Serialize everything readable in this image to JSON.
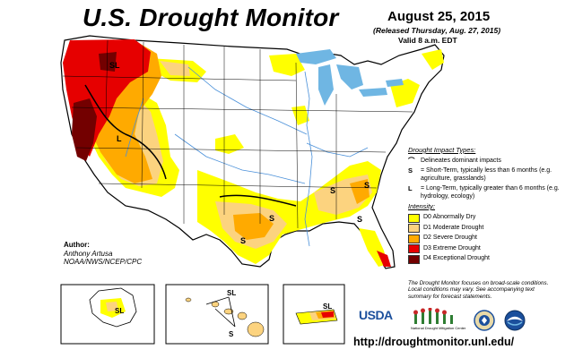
{
  "title": "U.S. Drought Monitor",
  "date": "August 25, 2015",
  "released": "(Released Thursday, Aug. 27, 2015)",
  "valid": "Valid 8 a.m. EDT",
  "legend": {
    "impact_header": "Drought Impact Types:",
    "delineates": "Delineates dominant impacts",
    "s_symbol": "S",
    "s_text": "= Short-Term, typically less than 6 months (e.g. agriculture, grasslands)",
    "l_symbol": "L",
    "l_text": "= Long-Term, typically greater than 6 months (e.g. hydrology, ecology)",
    "intensity_header": "Intensity:",
    "categories": [
      {
        "label": "D0 Abnormally Dry",
        "color": "#ffff00"
      },
      {
        "label": "D1 Moderate Drought",
        "color": "#fcd37f"
      },
      {
        "label": "D2 Severe Drought",
        "color": "#ffaa00"
      },
      {
        "label": "D3 Extreme Drought",
        "color": "#e60000"
      },
      {
        "label": "D4 Exceptional Drought",
        "color": "#730000"
      }
    ],
    "note": "The Drought Monitor focuses on broad-scale conditions. Local conditions may vary. See accompanying text summary for forecast statements."
  },
  "author": {
    "label": "Author:",
    "name": "Anthony Artusa",
    "org": "NOAA/NWS/NCEP/CPC"
  },
  "map_labels": {
    "sl": "SL",
    "l": "L",
    "s": "S"
  },
  "logos": {
    "usda": "USDA",
    "ndmc": "National Drought Mitigation Center"
  },
  "url": "http://droughtmonitor.unl.edu/",
  "colors": {
    "water": "#6fb6e3",
    "river": "#4a90d9",
    "border": "#000000"
  }
}
